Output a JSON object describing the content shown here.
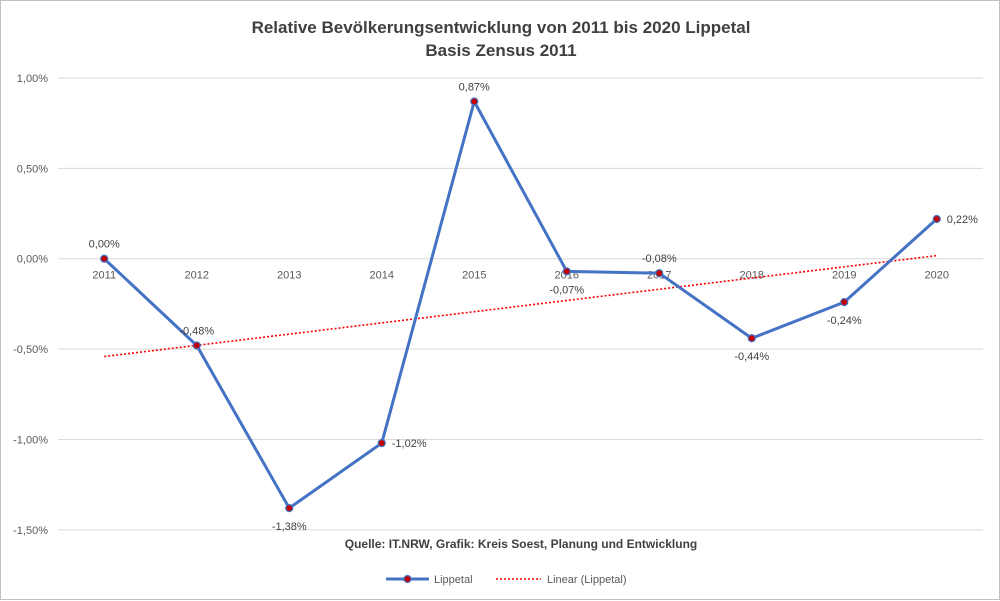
{
  "chart_data": {
    "type": "line",
    "title": "Relative Bevölkerungsentwicklung von 2011 bis 2020 Lippetal",
    "subtitle": "Basis Zensus 2011",
    "source": "Quelle: IT.NRW, Grafik: Kreis Soest, Planung und Entwicklung",
    "categories": [
      "2011",
      "2012",
      "2013",
      "2014",
      "2015",
      "2016",
      "2017",
      "2018",
      "2019",
      "2020"
    ],
    "y_ticks": [
      "1,00%",
      "0,50%",
      "0,00%",
      "-0,50%",
      "-1,00%",
      "-1,50%"
    ],
    "y_tick_values": [
      1.0,
      0.5,
      0.0,
      -0.5,
      -1.0,
      -1.5
    ],
    "ylim": [
      -1.75,
      1.0
    ],
    "grid": true,
    "legend_position": "bottom",
    "series": [
      {
        "name": "Lippetal",
        "values": [
          0.0,
          -0.48,
          -1.38,
          -1.02,
          0.87,
          -0.07,
          -0.08,
          -0.44,
          -0.24,
          0.22
        ],
        "labels": [
          "0,00%",
          "-0,48%",
          "-1,38%",
          "-1,02%",
          "0,87%",
          "-0,07%",
          "-0,08%",
          "-0,44%",
          "-0,24%",
          "0,22%"
        ],
        "color": "#4472c4",
        "marker_color": "#c00000"
      }
    ],
    "trendline": {
      "name": "Linear (Lippetal)",
      "type": "linear",
      "color": "#ff0000"
    }
  }
}
